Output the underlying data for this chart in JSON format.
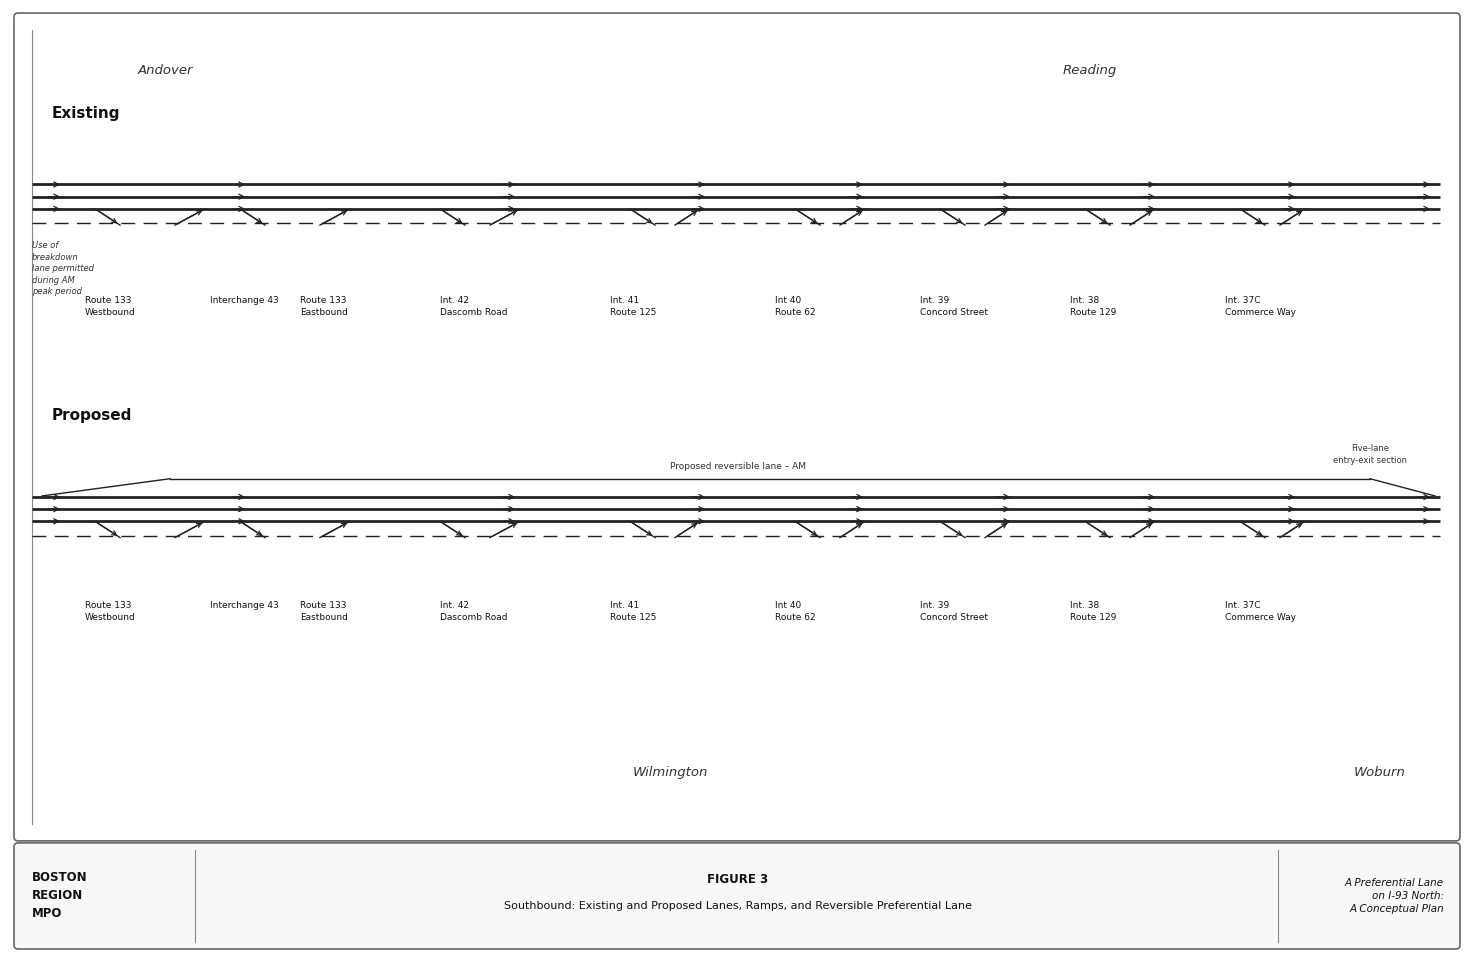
{
  "title": "FIGURE 3",
  "subtitle": "Southbound: Existing and Proposed Lanes, Ramps, and Reversible Preferential Lane",
  "org_name": "BOSTON\nREGION\nMPO",
  "right_text": "A Preferential Lane\non I-93 North:\nA Conceptual Plan",
  "top_left_city": "Andover",
  "top_right_city": "Reading",
  "bottom_left_city": "Wilmington",
  "bottom_right_city": "Woburn",
  "existing_label": "Existing",
  "proposed_label": "Proposed",
  "existing_note": "Use of\nbreakdown\nlane permitted\nduring AM\npeak period",
  "proposed_reversible_label": "Proposed reversible lane – AM",
  "five_lane_label": "Five-lane\nentry-exit section",
  "background_color": "#ffffff",
  "line_color": "#222222"
}
